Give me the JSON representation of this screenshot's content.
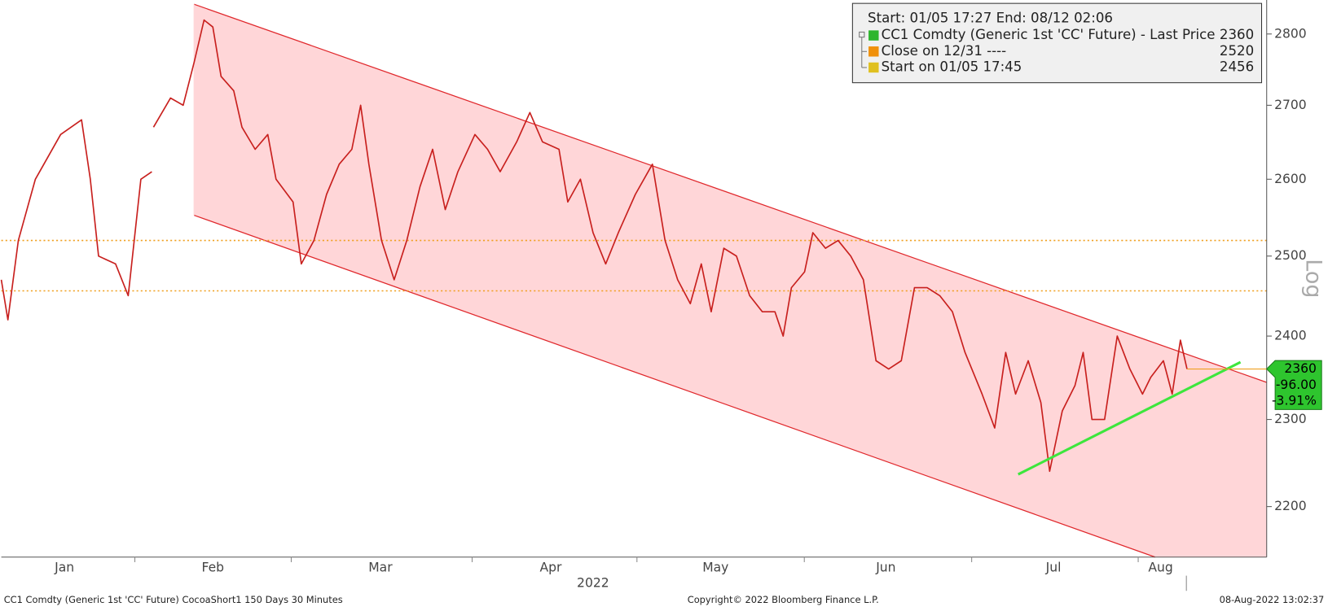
{
  "chart_data": {
    "type": "line",
    "log_scale": true,
    "legend_header": "Start: 01/05 17:27 End: 08/12 02:06",
    "x_axis_label": "2022",
    "scale_label": "Log",
    "xlim": [
      0,
      230.3
    ],
    "ylim": [
      2144,
      2849
    ],
    "xticks": [
      {
        "value": 11.5,
        "label": "Jan"
      },
      {
        "value": 38.5,
        "label": "Feb"
      },
      {
        "value": 69,
        "label": "Mar"
      },
      {
        "value": 100,
        "label": "Apr"
      },
      {
        "value": 130,
        "label": "May"
      },
      {
        "value": 161,
        "label": "Jun"
      },
      {
        "value": 191.5,
        "label": "Jul"
      },
      {
        "value": 211,
        "label": "Aug"
      }
    ],
    "yticks": [
      2200,
      2300,
      2400,
      2500,
      2600,
      2700,
      2800
    ],
    "x": [
      0,
      1.2,
      3.1,
      6.2,
      10.8,
      14.6,
      16.2,
      17.7,
      20.8,
      23.1,
      25.4,
      27.4,
      27.5,
      27.7,
      30.8,
      33.1,
      35.1,
      36.9,
      38.5,
      40,
      42.3,
      43.8,
      46.2,
      48.5,
      50,
      53.1,
      54.6,
      56.9,
      59.2,
      61.5,
      63.8,
      65.4,
      66.9,
      69.2,
      71.5,
      73.8,
      76.2,
      78.5,
      80.8,
      83.1,
      86.2,
      88.5,
      90.8,
      93.8,
      96.2,
      98.5,
      101.5,
      103.1,
      105.4,
      107.7,
      110,
      112.3,
      115.4,
      118.5,
      120.8,
      123.1,
      125.4,
      127.4,
      129.2,
      131.5,
      133.8,
      136.2,
      138.5,
      140.8,
      142.3,
      143.8,
      146.2,
      147.7,
      150,
      152.3,
      154.6,
      156.9,
      159.2,
      161.5,
      163.8,
      166.2,
      168.5,
      170.8,
      173.1,
      175.4,
      178.5,
      180.8,
      182.8,
      184.6,
      186.9,
      189.2,
      190.8,
      193.1,
      195.4,
      196.9,
      198.5,
      200.8,
      203.1,
      205.4,
      207.7,
      209.2,
      211.5,
      213.1,
      214.6,
      215.8
    ],
    "series": [
      {
        "name": "CC1 Comdty (Generic 1st 'CC' Future) - Last Price",
        "color": "#2db52d",
        "line_color": "#c8201e",
        "last_price": 2360,
        "values": [
          2470,
          2420,
          2520,
          2600,
          2660,
          2680,
          2600,
          2500,
          2490,
          2450,
          2600,
          2610,
          null,
          2670,
          2710,
          2700,
          2760,
          2820,
          2810,
          2740,
          2720,
          2670,
          2640,
          2660,
          2600,
          2570,
          2490,
          2520,
          2580,
          2620,
          2640,
          2700,
          2620,
          2520,
          2470,
          2520,
          2590,
          2640,
          2560,
          2610,
          2660,
          2640,
          2610,
          2650,
          2690,
          2650,
          2640,
          2570,
          2600,
          2530,
          2490,
          2530,
          2580,
          2620,
          2520,
          2470,
          2440,
          2490,
          2430,
          2510,
          2500,
          2450,
          2430,
          2430,
          2400,
          2460,
          2480,
          2530,
          2510,
          2520,
          2500,
          2470,
          2370,
          2360,
          2370,
          2460,
          2460,
          2450,
          2430,
          2380,
          2330,
          2290,
          2380,
          2330,
          2370,
          2320,
          2240,
          2310,
          2340,
          2380,
          2300,
          2300,
          2400,
          2360,
          2330,
          2350,
          2370,
          2330,
          2395,
          2360
        ]
      }
    ],
    "reference_lines": [
      {
        "label": "Close on 12/31 ----",
        "value": 2520,
        "color": "#f0900a"
      },
      {
        "label": "Start on 01/05 17:45",
        "value": 2456,
        "color": "#e0c020"
      }
    ],
    "last_change": {
      "value": -96,
      "label": "-96.00"
    },
    "last_change_pct": {
      "value": -3.91,
      "label": "-3.91%"
    },
    "footer": {
      "left": "CC1 Comdty (Generic 1st 'CC' Future) CocoaShort1 150 Days 30 Minutes",
      "center": "Copyright© 2022 Bloomberg Finance L.P.",
      "right": "08-Aug-2022 13:02:37"
    }
  }
}
